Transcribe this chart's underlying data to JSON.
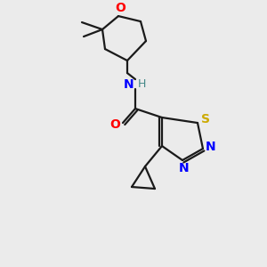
{
  "background_color": "#ebebeb",
  "bond_color": "#1a1a1a",
  "atom_colors": {
    "N": "#0000ff",
    "S": "#ccaa00",
    "O": "#ff0000",
    "H": "#448888",
    "C": "#1a1a1a"
  },
  "figsize": [
    3.0,
    3.0
  ],
  "dpi": 100
}
